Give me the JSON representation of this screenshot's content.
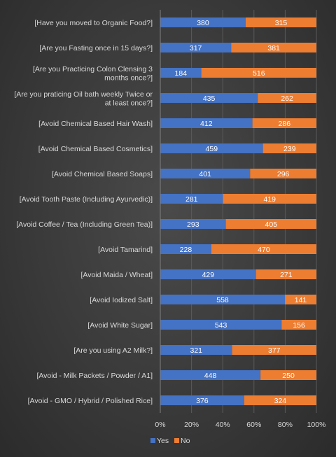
{
  "chart_data": {
    "type": "bar",
    "orientation": "horizontal",
    "stacked": "percent",
    "categories": [
      "[Have you moved to Organic Food?]",
      "[Are you Fasting once in 15 days?]",
      "[Are you Practicing Colon Clensing 3 months once?]",
      "[Are you praticing Oil bath weekly Twice or at least once?]",
      "[Avoid Chemical Based Hair Wash]",
      "[Avoid Chemical Based Cosmetics]",
      "[Avoid Chemical Based Soaps]",
      "[Avoid Tooth Paste (Including Ayurvedic)]",
      "[Avoid Coffee / Tea (Including Green Tea)]",
      "[Avoid Tamarind]",
      "[Avoid Maida / Wheat]",
      "[Avoid Iodized Salt]",
      "[Avoid White Sugar]",
      "[Are you using A2 Milk?]",
      "[Avoid - Milk Packets / Powder / A1]",
      "[Avoid - GMO / Hybrid / Polished Rice]"
    ],
    "category_lines": [
      [
        "[Have you moved to Organic Food?]"
      ],
      [
        "[Are you Fasting once in 15 days?]"
      ],
      [
        "[Are you Practicing Colon Clensing 3",
        "months once?]"
      ],
      [
        "[Are you praticing Oil bath weekly Twice or",
        "at least once?]"
      ],
      [
        "[Avoid Chemical Based Hair Wash]"
      ],
      [
        "[Avoid Chemical Based Cosmetics]"
      ],
      [
        "[Avoid Chemical Based Soaps]"
      ],
      [
        "[Avoid Tooth Paste (Including Ayurvedic)]"
      ],
      [
        "[Avoid Coffee / Tea (Including Green Tea)]"
      ],
      [
        "[Avoid Tamarind]"
      ],
      [
        "[Avoid Maida / Wheat]"
      ],
      [
        "[Avoid Iodized Salt]"
      ],
      [
        "[Avoid White Sugar]"
      ],
      [
        "[Are you using A2 Milk?]"
      ],
      [
        "[Avoid - Milk Packets / Powder / A1]"
      ],
      [
        "[Avoid - GMO / Hybrid / Polished Rice]"
      ]
    ],
    "series": [
      {
        "name": "Yes",
        "color": "#4472C4",
        "values": [
          380,
          317,
          184,
          435,
          412,
          459,
          401,
          281,
          293,
          228,
          429,
          558,
          543,
          321,
          448,
          376
        ]
      },
      {
        "name": "No",
        "color": "#ED7D31",
        "values": [
          315,
          381,
          516,
          262,
          286,
          239,
          296,
          419,
          405,
          470,
          271,
          141,
          156,
          377,
          250,
          324
        ]
      }
    ],
    "x_ticks": [
      "0%",
      "20%",
      "40%",
      "60%",
      "80%",
      "100%"
    ],
    "xlim": [
      0,
      100
    ],
    "grid": true,
    "legend_position": "bottom",
    "title": "",
    "xlabel": "",
    "ylabel": ""
  }
}
